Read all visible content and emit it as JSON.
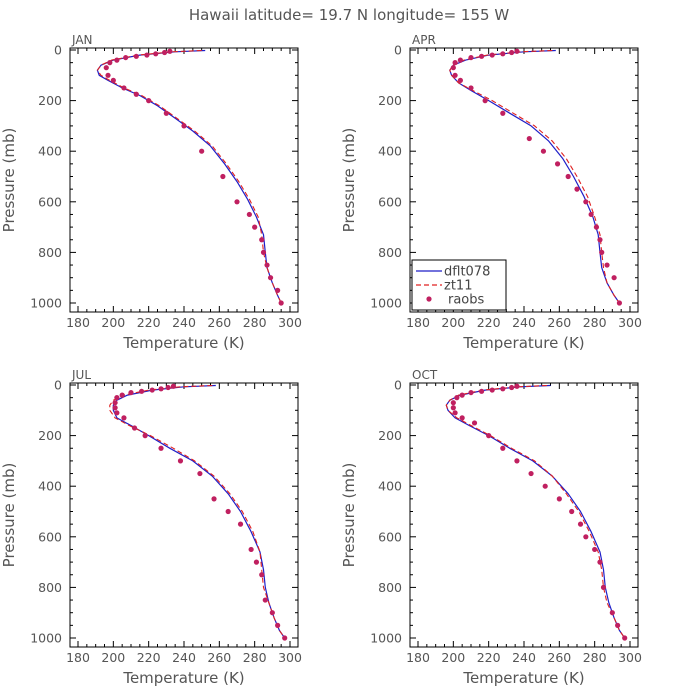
{
  "title": "Hawaii  latitude= 19.7 N longitude= 155 W",
  "colors": {
    "dflt078": "#1f1fc8",
    "zt11": "#e02020",
    "raobs": "#c02060",
    "axis": "#000000",
    "text": "#555555"
  },
  "legend": {
    "items": [
      "dflt078",
      "zt11",
      "raobs"
    ],
    "placement": "bottom-left of APR panel"
  },
  "chart_data": [
    {
      "type": "line",
      "panel": "JAN",
      "xlabel": "Temperature (K)",
      "ylabel": "Pressure (mb)",
      "xlim": [
        180,
        300
      ],
      "ylim": [
        1000,
        0
      ],
      "xticks": [
        180,
        200,
        220,
        240,
        260,
        280,
        300
      ],
      "yticks": [
        0,
        200,
        400,
        600,
        800,
        1000
      ],
      "series": [
        {
          "name": "dflt078",
          "style": "solid",
          "x": [
            252,
            235,
            215,
            200,
            193,
            191,
            192,
            197,
            205,
            215,
            225,
            235,
            245,
            255,
            263,
            270,
            276,
            281,
            285,
            286,
            287,
            290,
            293,
            295
          ],
          "y": [
            2,
            7,
            20,
            40,
            60,
            80,
            100,
            120,
            150,
            180,
            220,
            270,
            320,
            380,
            450,
            520,
            590,
            660,
            730,
            800,
            860,
            920,
            970,
            1000
          ]
        },
        {
          "name": "zt11",
          "style": "dashed",
          "x": [
            250,
            233,
            214,
            199,
            193,
            191,
            193,
            198,
            206,
            216,
            226,
            236,
            246,
            256,
            264,
            271,
            277,
            282,
            284,
            285,
            287,
            290,
            293,
            295
          ],
          "y": [
            2,
            7,
            20,
            40,
            60,
            80,
            100,
            120,
            150,
            180,
            220,
            270,
            320,
            380,
            450,
            520,
            590,
            660,
            730,
            800,
            860,
            920,
            970,
            1000
          ]
        },
        {
          "name": "raobs",
          "style": "points",
          "x": [
            232,
            229,
            224,
            219,
            213,
            207,
            202,
            198,
            196,
            197,
            200,
            206,
            213,
            220,
            230,
            240,
            250,
            262,
            270,
            277,
            280,
            284,
            285,
            287,
            289,
            293,
            295
          ],
          "y": [
            5,
            10,
            15,
            20,
            25,
            30,
            40,
            50,
            70,
            100,
            120,
            150,
            175,
            200,
            250,
            300,
            400,
            500,
            600,
            650,
            700,
            750,
            800,
            850,
            900,
            950,
            1000
          ]
        }
      ]
    },
    {
      "type": "line",
      "panel": "APR",
      "xlabel": "Temperature (K)",
      "ylabel": "Pressure (mb)",
      "xlim": [
        180,
        300
      ],
      "ylim": [
        1000,
        0
      ],
      "xticks": [
        180,
        200,
        220,
        240,
        260,
        280,
        300
      ],
      "yticks": [
        0,
        200,
        400,
        600,
        800,
        1000
      ],
      "series": [
        {
          "name": "dflt078",
          "style": "solid",
          "x": [
            258,
            240,
            220,
            207,
            200,
            198,
            199,
            203,
            210,
            220,
            232,
            244,
            254,
            262,
            268,
            274,
            279,
            282,
            283,
            284,
            287,
            291,
            294
          ],
          "y": [
            2,
            7,
            20,
            40,
            60,
            80,
            100,
            130,
            160,
            200,
            250,
            300,
            360,
            430,
            500,
            580,
            660,
            730,
            800,
            860,
            920,
            970,
            1000
          ]
        },
        {
          "name": "zt11",
          "style": "dashed",
          "x": [
            256,
            238,
            219,
            206,
            200,
            198,
            199,
            203,
            211,
            222,
            234,
            246,
            256,
            264,
            270,
            276,
            280,
            283,
            284,
            285,
            287,
            291,
            294
          ],
          "y": [
            2,
            7,
            20,
            40,
            60,
            80,
            100,
            130,
            160,
            200,
            250,
            300,
            360,
            430,
            500,
            580,
            660,
            730,
            800,
            860,
            920,
            970,
            1000
          ]
        },
        {
          "name": "raobs",
          "style": "points",
          "x": [
            236,
            233,
            228,
            222,
            216,
            210,
            204,
            201,
            200,
            201,
            204,
            210,
            218,
            228,
            243,
            251,
            259,
            265,
            270,
            275,
            278,
            281,
            283,
            284,
            287,
            291,
            294
          ],
          "y": [
            5,
            10,
            15,
            20,
            25,
            30,
            40,
            50,
            70,
            100,
            120,
            150,
            200,
            250,
            350,
            400,
            450,
            500,
            550,
            600,
            650,
            700,
            750,
            800,
            850,
            900,
            1000
          ]
        }
      ]
    },
    {
      "type": "line",
      "panel": "JUL",
      "xlabel": "Temperature (K)",
      "ylabel": "Pressure (mb)",
      "xlim": [
        180,
        300
      ],
      "ylim": [
        1000,
        0
      ],
      "xticks": [
        180,
        200,
        220,
        240,
        260,
        280,
        300
      ],
      "yticks": [
        0,
        200,
        400,
        600,
        800,
        1000
      ],
      "series": [
        {
          "name": "dflt078",
          "style": "solid",
          "x": [
            258,
            240,
            222,
            208,
            202,
            200,
            200,
            202,
            210,
            220,
            232,
            245,
            256,
            265,
            272,
            278,
            283,
            285,
            286,
            288,
            291,
            294,
            297
          ],
          "y": [
            2,
            7,
            20,
            40,
            60,
            80,
            100,
            130,
            160,
            200,
            250,
            300,
            360,
            430,
            500,
            580,
            660,
            730,
            800,
            860,
            920,
            970,
            1000
          ]
        },
        {
          "name": "zt11",
          "style": "dashed",
          "x": [
            256,
            238,
            220,
            206,
            200,
            198,
            198,
            201,
            209,
            221,
            234,
            246,
            257,
            266,
            273,
            279,
            283,
            284,
            285,
            288,
            291,
            294,
            297
          ],
          "y": [
            2,
            7,
            20,
            40,
            60,
            80,
            100,
            130,
            160,
            200,
            250,
            300,
            360,
            430,
            500,
            580,
            660,
            730,
            800,
            860,
            920,
            970,
            1000
          ]
        },
        {
          "name": "raobs",
          "style": "points",
          "x": [
            234,
            231,
            227,
            222,
            216,
            210,
            205,
            202,
            201,
            201,
            202,
            206,
            212,
            218,
            227,
            238,
            249,
            257,
            265,
            272,
            278,
            281,
            284,
            286,
            290,
            293,
            297
          ],
          "y": [
            5,
            10,
            15,
            20,
            25,
            30,
            40,
            50,
            70,
            90,
            110,
            130,
            170,
            200,
            250,
            300,
            350,
            450,
            500,
            550,
            650,
            700,
            750,
            850,
            900,
            950,
            1000
          ]
        }
      ]
    },
    {
      "type": "line",
      "panel": "OCT",
      "xlabel": "Temperature (K)",
      "ylabel": "Pressure (mb)",
      "xlim": [
        180,
        300
      ],
      "ylim": [
        1000,
        0
      ],
      "xticks": [
        180,
        200,
        220,
        240,
        260,
        280,
        300
      ],
      "yticks": [
        0,
        200,
        400,
        600,
        800,
        1000
      ],
      "series": [
        {
          "name": "dflt078",
          "style": "solid",
          "x": [
            255,
            238,
            218,
            204,
            198,
            196,
            197,
            201,
            209,
            220,
            232,
            245,
            256,
            265,
            272,
            278,
            283,
            285,
            286,
            288,
            291,
            294,
            297
          ],
          "y": [
            2,
            7,
            20,
            40,
            60,
            80,
            100,
            130,
            160,
            200,
            250,
            300,
            360,
            430,
            500,
            580,
            660,
            730,
            800,
            860,
            920,
            970,
            1000
          ]
        },
        {
          "name": "zt11",
          "style": "dashed",
          "x": [
            253,
            236,
            217,
            203,
            198,
            196,
            197,
            202,
            210,
            221,
            233,
            246,
            256,
            264,
            271,
            277,
            282,
            284,
            285,
            287,
            291,
            294,
            297
          ],
          "y": [
            2,
            7,
            20,
            40,
            60,
            80,
            100,
            130,
            160,
            200,
            250,
            300,
            360,
            430,
            500,
            580,
            660,
            730,
            800,
            860,
            920,
            970,
            1000
          ]
        },
        {
          "name": "raobs",
          "style": "points",
          "x": [
            236,
            233,
            228,
            222,
            216,
            210,
            205,
            202,
            200,
            200,
            201,
            205,
            212,
            220,
            228,
            236,
            244,
            252,
            260,
            267,
            272,
            275,
            280,
            283,
            285,
            290,
            293,
            297
          ],
          "y": [
            5,
            10,
            15,
            20,
            25,
            30,
            40,
            50,
            70,
            90,
            110,
            130,
            150,
            200,
            250,
            300,
            350,
            400,
            450,
            500,
            550,
            600,
            650,
            700,
            800,
            900,
            950,
            1000
          ]
        }
      ]
    }
  ]
}
